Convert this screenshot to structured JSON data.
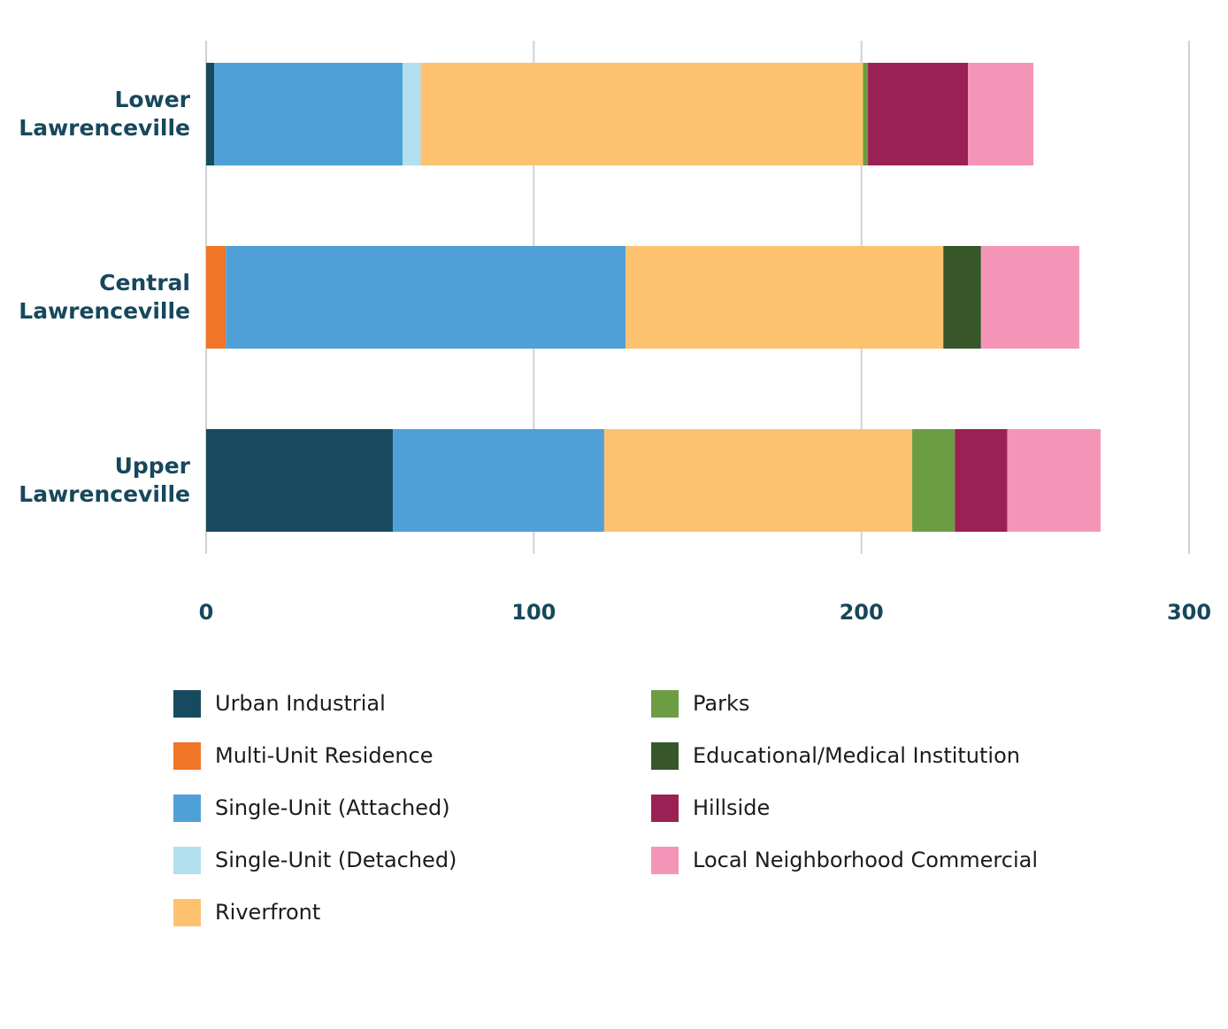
{
  "chart_data": {
    "type": "bar",
    "orientation": "horizontal",
    "stacked": true,
    "categories": [
      [
        "Lower",
        "Lawrenceville"
      ],
      [
        "Central",
        "Lawrenceville"
      ],
      [
        "Upper",
        "Lawrenceville"
      ]
    ],
    "xlim": [
      0,
      300
    ],
    "xticks": [
      "0",
      "100",
      "200",
      "300"
    ],
    "grid": "vertical",
    "legend_position": "bottom",
    "series": [
      {
        "name": "Urban Industrial",
        "color": "#174a5e",
        "values": [
          2.5,
          0,
          57
        ]
      },
      {
        "name": "Multi-Unit Residence",
        "color": "#f07527",
        "values": [
          0,
          6,
          0
        ]
      },
      {
        "name": "Single-Unit (Attached)",
        "color": "#50a0d8",
        "values": [
          57.5,
          122,
          64.5
        ]
      },
      {
        "name": "Single-Unit (Detached)",
        "color": "#b2e0ef",
        "values": [
          5.5,
          0,
          0
        ]
      },
      {
        "name": "Riverfront",
        "color": "#fcc270",
        "values": [
          135,
          97,
          94
        ]
      },
      {
        "name": "Parks",
        "color": "#6c9d43",
        "values": [
          1.5,
          0,
          13
        ]
      },
      {
        "name": "Educational/Medical Institution",
        "color": "#37572b",
        "values": [
          0,
          11.5,
          0
        ]
      },
      {
        "name": "Hillside",
        "color": "#9b2154",
        "values": [
          30.5,
          0,
          16
        ]
      },
      {
        "name": "Local Neighborhood Commercial",
        "color": "#f495b8",
        "values": [
          20,
          30,
          28.5
        ]
      }
    ]
  }
}
